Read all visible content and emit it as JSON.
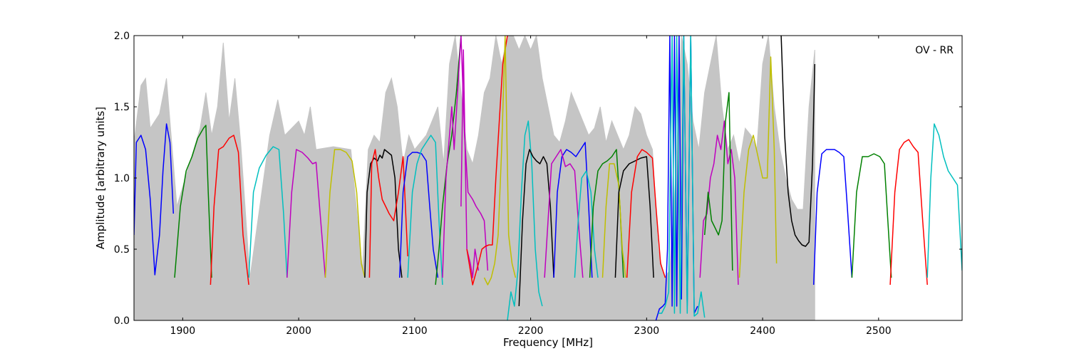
{
  "chart_data": {
    "type": "line",
    "title": "",
    "annotation": "OV - RR",
    "xlabel": "Frequency [MHz]",
    "ylabel": "Amplitude [arbitrary units]",
    "xlim": [
      1858,
      2572
    ],
    "ylim": [
      0.0,
      2.0
    ],
    "xticks": [
      1900,
      2000,
      2100,
      2200,
      2300,
      2400,
      2500
    ],
    "yticks": [
      0.0,
      0.5,
      1.0,
      1.5,
      2.0
    ],
    "grid": false,
    "legend": "none",
    "reference_band": {
      "color": "#bfbfbf",
      "x": [
        1858,
        1864,
        1868,
        1872,
        1880,
        1886,
        1890,
        1895,
        1915,
        1920,
        1925,
        1930,
        1935,
        1940,
        1945,
        1950,
        1958,
        1975,
        1982,
        1988,
        2000,
        2005,
        2010,
        2015,
        2030,
        2045,
        2055,
        2060,
        2065,
        2070,
        2075,
        2080,
        2085,
        2090,
        2095,
        2100,
        2105,
        2110,
        2115,
        2120,
        2125,
        2130,
        2135,
        2140,
        2145,
        2150,
        2155,
        2160,
        2165,
        2170,
        2175,
        2180,
        2185,
        2190,
        2195,
        2200,
        2205,
        2210,
        2215,
        2220,
        2225,
        2230,
        2235,
        2240,
        2245,
        2250,
        2255,
        2260,
        2265,
        2270,
        2275,
        2280,
        2285,
        2290,
        2295,
        2300,
        2305,
        2310,
        2315,
        2320,
        2325,
        2330,
        2335,
        2340,
        2345,
        2350,
        2355,
        2360,
        2365,
        2370,
        2375,
        2380,
        2385,
        2390,
        2395,
        2400,
        2405,
        2410,
        2415,
        2420,
        2425,
        2430,
        2435,
        2440,
        2445
      ],
      "y": [
        1.25,
        1.65,
        1.7,
        1.35,
        1.45,
        1.7,
        1.3,
        0.8,
        1.35,
        1.6,
        1.3,
        1.5,
        1.95,
        1.4,
        1.7,
        1.25,
        0.3,
        1.3,
        1.55,
        1.3,
        1.4,
        1.3,
        1.5,
        1.2,
        1.22,
        1.2,
        0.35,
        1.2,
        1.3,
        1.25,
        1.6,
        1.7,
        1.5,
        1.1,
        1.3,
        1.2,
        1.25,
        1.3,
        1.4,
        1.5,
        1.1,
        1.8,
        2.0,
        1.6,
        1.2,
        1.1,
        1.3,
        1.6,
        1.7,
        2.0,
        1.8,
        2.0,
        2.0,
        1.9,
        2.0,
        1.9,
        2.0,
        1.7,
        1.5,
        1.3,
        1.25,
        1.4,
        1.6,
        1.5,
        1.4,
        1.3,
        1.35,
        1.5,
        1.25,
        1.4,
        1.3,
        1.2,
        1.3,
        1.5,
        1.45,
        1.3,
        1.2,
        0.5,
        0.3,
        0.35,
        1.0,
        2.0,
        1.8,
        1.4,
        1.2,
        1.6,
        1.8,
        2.0,
        1.5,
        1.2,
        1.3,
        1.1,
        1.35,
        1.3,
        1.2,
        1.8,
        2.0,
        1.5,
        1.2,
        1.0,
        0.85,
        0.78,
        0.78,
        1.5,
        1.9
      ]
    },
    "series": [
      {
        "color": "#0000ff",
        "x": [
          1858,
          1860,
          1864,
          1868,
          1872,
          1876,
          1880,
          1883,
          1886,
          1889,
          1892
        ],
        "y": [
          0.6,
          1.25,
          1.3,
          1.2,
          0.85,
          0.32,
          0.6,
          1.05,
          1.38,
          1.25,
          0.75
        ]
      },
      {
        "color": "#008000",
        "x": [
          1893,
          1898,
          1903,
          1908,
          1913,
          1918,
          1920,
          1922,
          1925
        ],
        "y": [
          0.3,
          0.8,
          1.05,
          1.15,
          1.28,
          1.35,
          1.37,
          0.9,
          0.3
        ]
      },
      {
        "color": "#ff0000",
        "x": [
          1924,
          1927,
          1931,
          1935,
          1940,
          1944,
          1948,
          1952,
          1957
        ],
        "y": [
          0.25,
          0.8,
          1.2,
          1.22,
          1.28,
          1.3,
          1.18,
          0.6,
          0.25
        ]
      },
      {
        "color": "#00bfbf",
        "x": [
          1957,
          1961,
          1966,
          1972,
          1978,
          1983,
          1987,
          1990
        ],
        "y": [
          0.3,
          0.9,
          1.07,
          1.16,
          1.22,
          1.2,
          0.75,
          0.3
        ]
      },
      {
        "color": "#bf00bf",
        "x": [
          1990,
          1994,
          1998,
          2003,
          2008,
          2012,
          2015,
          2019,
          2023
        ],
        "y": [
          0.3,
          0.9,
          1.2,
          1.18,
          1.14,
          1.1,
          1.11,
          0.7,
          0.3
        ]
      },
      {
        "color": "#bfbf00",
        "x": [
          2023,
          2027,
          2031,
          2036,
          2041,
          2046,
          2050,
          2054,
          2057
        ],
        "y": [
          0.3,
          0.9,
          1.2,
          1.2,
          1.18,
          1.12,
          0.9,
          0.4,
          0.3
        ]
      },
      {
        "color": "#000000",
        "x": [
          2057,
          2059,
          2062,
          2065,
          2068,
          2070,
          2072,
          2074,
          2077,
          2080,
          2083,
          2086,
          2089
        ],
        "y": [
          0.3,
          0.9,
          1.1,
          1.14,
          1.12,
          1.16,
          1.14,
          1.2,
          1.18,
          1.16,
          1.0,
          0.5,
          0.3
        ]
      },
      {
        "color": "#ff0000",
        "x": [
          2061,
          2063,
          2066,
          2069,
          2072,
          2075,
          2078,
          2082,
          2086,
          2090,
          2094
        ],
        "y": [
          0.3,
          1.1,
          1.2,
          1.0,
          0.85,
          0.8,
          0.75,
          0.7,
          0.9,
          1.15,
          0.45
        ]
      },
      {
        "color": "#0000ff",
        "x": [
          2087,
          2090,
          2094,
          2098,
          2102,
          2106,
          2110,
          2113,
          2116,
          2120
        ],
        "y": [
          0.3,
          0.9,
          1.15,
          1.18,
          1.18,
          1.17,
          1.12,
          0.8,
          0.5,
          0.3
        ]
      },
      {
        "color": "#00bfbf",
        "x": [
          2094,
          2098,
          2102,
          2106,
          2110,
          2114,
          2118,
          2121,
          2124
        ],
        "y": [
          0.3,
          0.9,
          1.1,
          1.2,
          1.25,
          1.3,
          1.25,
          0.7,
          0.25
        ]
      },
      {
        "color": "#008000",
        "x": [
          2118,
          2121,
          2124,
          2128,
          2132,
          2136,
          2140
        ],
        "y": [
          0.25,
          0.5,
          0.8,
          1.1,
          1.3,
          1.6,
          2.0
        ]
      },
      {
        "color": "#bf00bf",
        "x": [
          2124,
          2127,
          2130,
          2132,
          2134,
          2137,
          2140,
          2143,
          2146,
          2150,
          2153,
          2157,
          2160,
          2163
        ],
        "y": [
          0.3,
          1.0,
          1.3,
          1.5,
          1.2,
          1.6,
          2.0,
          1.3,
          0.9,
          0.85,
          0.8,
          0.75,
          0.7,
          0.35
        ]
      },
      {
        "color": "#bf00bf",
        "x": [
          2140,
          2142,
          2145,
          2148,
          2150,
          2152,
          2155
        ],
        "y": [
          0.8,
          1.9,
          0.5,
          0.4,
          0.3,
          0.5,
          0.35
        ]
      },
      {
        "color": "#ff0000",
        "x": [
          2145,
          2150,
          2155,
          2158,
          2161,
          2164,
          2167,
          2170,
          2173,
          2176,
          2180
        ],
        "y": [
          0.5,
          0.25,
          0.4,
          0.5,
          0.52,
          0.53,
          0.53,
          1.0,
          1.4,
          1.8,
          2.0
        ]
      },
      {
        "color": "#bfbf00",
        "x": [
          2160,
          2163,
          2166,
          2169,
          2172,
          2175,
          2178,
          2181,
          2184,
          2187
        ],
        "y": [
          0.3,
          0.25,
          0.3,
          0.4,
          0.6,
          1.2,
          2.0,
          0.6,
          0.4,
          0.3
        ]
      },
      {
        "color": "#00bfbf",
        "x": [
          2180,
          2183,
          2186,
          2189,
          2192,
          2195,
          2198,
          2201,
          2204,
          2207,
          2210
        ],
        "y": [
          0.0,
          0.2,
          0.1,
          0.35,
          0.9,
          1.3,
          1.4,
          1.1,
          0.5,
          0.2,
          0.1
        ]
      },
      {
        "color": "#000000",
        "x": [
          2190,
          2193,
          2196,
          2199,
          2202,
          2205,
          2208,
          2211,
          2214,
          2217,
          2220
        ],
        "y": [
          0.1,
          0.7,
          1.1,
          1.2,
          1.15,
          1.12,
          1.1,
          1.15,
          1.1,
          0.8,
          0.3
        ]
      },
      {
        "color": "#0000ff",
        "x": [
          2220,
          2223,
          2227,
          2231,
          2235,
          2239,
          2243,
          2247,
          2250,
          2253
        ],
        "y": [
          0.3,
          0.9,
          1.15,
          1.2,
          1.18,
          1.15,
          1.2,
          1.25,
          0.8,
          0.3
        ]
      },
      {
        "color": "#bf00bf",
        "x": [
          2212,
          2215,
          2218,
          2222,
          2226,
          2230,
          2234,
          2238,
          2242,
          2245
        ],
        "y": [
          0.3,
          0.7,
          1.1,
          1.15,
          1.2,
          1.08,
          1.1,
          1.05,
          0.6,
          0.3
        ]
      },
      {
        "color": "#00bfbf",
        "x": [
          2238,
          2241,
          2244,
          2248,
          2252,
          2255,
          2258
        ],
        "y": [
          0.3,
          0.7,
          1.0,
          1.05,
          0.9,
          0.5,
          0.3
        ]
      },
      {
        "color": "#008000",
        "x": [
          2251,
          2254,
          2258,
          2262,
          2266,
          2270,
          2274,
          2277,
          2280
        ],
        "y": [
          0.3,
          0.8,
          1.05,
          1.1,
          1.12,
          1.15,
          1.2,
          0.8,
          0.3
        ]
      },
      {
        "color": "#bfbf00",
        "x": [
          2262,
          2265,
          2268,
          2272,
          2276,
          2279,
          2282
        ],
        "y": [
          0.3,
          0.8,
          1.1,
          1.1,
          0.95,
          0.5,
          0.3
        ]
      },
      {
        "color": "#000000",
        "x": [
          2273,
          2276,
          2280,
          2285,
          2290,
          2295,
          2300,
          2303,
          2306
        ],
        "y": [
          0.3,
          0.9,
          1.05,
          1.1,
          1.12,
          1.14,
          1.15,
          0.8,
          0.3
        ]
      },
      {
        "color": "#ff0000",
        "x": [
          2283,
          2287,
          2292,
          2296,
          2300,
          2305,
          2308,
          2312,
          2316
        ],
        "y": [
          0.3,
          0.9,
          1.15,
          1.2,
          1.18,
          1.14,
          0.8,
          0.4,
          0.3
        ]
      },
      {
        "color": "#0000ff",
        "x": [
          2308,
          2311,
          2314,
          2316,
          2318,
          2320,
          2322,
          2324,
          2326,
          2328,
          2330,
          2332,
          2335,
          2338,
          2341,
          2344
        ],
        "y": [
          0.0,
          0.08,
          0.1,
          0.12,
          0.5,
          2.0,
          0.1,
          2.0,
          0.1,
          2.0,
          0.15,
          2.0,
          0.1,
          2.0,
          0.05,
          0.1
        ]
      },
      {
        "color": "#00bfbf",
        "x": [
          2310,
          2313,
          2316,
          2319,
          2322,
          2324,
          2326,
          2329,
          2332,
          2335,
          2338,
          2341,
          2344,
          2347,
          2350
        ],
        "y": [
          0.05,
          0.05,
          0.1,
          0.2,
          2.0,
          0.05,
          2.0,
          0.05,
          2.0,
          0.05,
          2.0,
          0.03,
          0.05,
          0.2,
          0.02
        ]
      },
      {
        "color": "#bf00bf",
        "x": [
          2346,
          2349,
          2352,
          2355,
          2358,
          2361,
          2364,
          2367,
          2370,
          2373,
          2376,
          2379
        ],
        "y": [
          0.3,
          0.7,
          0.75,
          1.0,
          1.1,
          1.3,
          1.2,
          1.4,
          1.1,
          1.2,
          1.0,
          0.25
        ]
      },
      {
        "color": "#008000",
        "x": [
          2350,
          2353,
          2356,
          2359,
          2362,
          2365,
          2368,
          2371,
          2374
        ],
        "y": [
          0.6,
          0.9,
          0.7,
          0.65,
          0.6,
          0.7,
          1.4,
          1.6,
          0.35
        ]
      },
      {
        "color": "#bfbf00",
        "x": [
          2380,
          2384,
          2388,
          2392,
          2396,
          2400,
          2404,
          2407,
          2410,
          2412
        ],
        "y": [
          0.3,
          0.9,
          1.2,
          1.3,
          1.15,
          1.0,
          1.0,
          1.85,
          1.2,
          0.4
        ]
      },
      {
        "color": "#000000",
        "x": [
          2416,
          2419,
          2422,
          2425,
          2428,
          2431,
          2434,
          2437,
          2440,
          2443,
          2445
        ],
        "y": [
          2.0,
          1.3,
          0.9,
          0.7,
          0.6,
          0.56,
          0.53,
          0.52,
          0.55,
          1.1,
          1.8
        ]
      },
      {
        "color": "#0000ff",
        "x": [
          2444,
          2447,
          2451,
          2455,
          2459,
          2462,
          2466,
          2470,
          2473,
          2477
        ],
        "y": [
          0.25,
          0.9,
          1.17,
          1.2,
          1.2,
          1.2,
          1.18,
          1.15,
          0.8,
          0.3
        ]
      },
      {
        "color": "#008000",
        "x": [
          2477,
          2481,
          2486,
          2491,
          2496,
          2501,
          2505,
          2508,
          2511
        ],
        "y": [
          0.3,
          0.9,
          1.15,
          1.15,
          1.17,
          1.15,
          1.1,
          0.7,
          0.3
        ]
      },
      {
        "color": "#ff0000",
        "x": [
          2510,
          2514,
          2518,
          2522,
          2526,
          2530,
          2534,
          2538,
          2542
        ],
        "y": [
          0.25,
          0.9,
          1.2,
          1.25,
          1.27,
          1.22,
          1.18,
          0.7,
          0.25
        ]
      },
      {
        "color": "#00bfbf",
        "x": [
          2542,
          2545,
          2548,
          2552,
          2556,
          2560,
          2564,
          2568,
          2572
        ],
        "y": [
          0.3,
          1.0,
          1.38,
          1.3,
          1.15,
          1.05,
          1.0,
          0.95,
          0.35
        ]
      }
    ]
  }
}
